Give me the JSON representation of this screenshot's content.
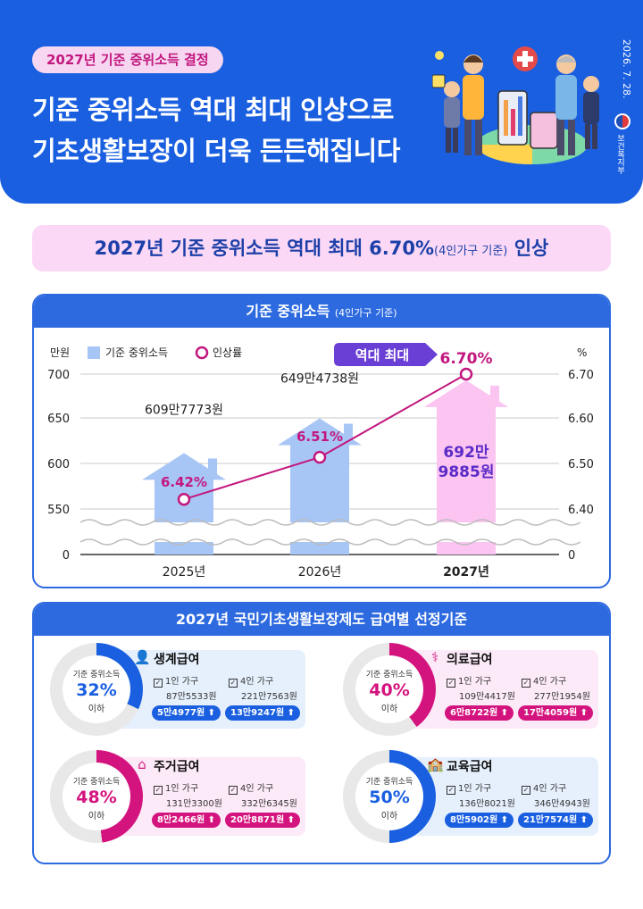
{
  "header": {
    "badge": "2027년 기준 중위소득 결정",
    "title_line1": "기준 중위소득 역대 최대 인상으로",
    "title_line2": "기초생활보장이 더욱 든든해집니다",
    "date": "2026. 7. 28.",
    "ministry": "보건복지부"
  },
  "highlight": {
    "main": "2027년 기준 중위소득 역대 최대 6.70%",
    "small": "(4인가구 기준)",
    "end": " 인상"
  },
  "chart_section": {
    "title": "기준 중위소득",
    "subtitle": "(4인가구 기준)"
  },
  "chart_data": {
    "type": "bar",
    "title": "기준 중위소득",
    "subtitle": "(4인가구 기준)",
    "categories": [
      "2025년",
      "2026년",
      "2027년"
    ],
    "series": [
      {
        "name": "기준 중위소득",
        "type": "bar",
        "axis": "left",
        "values": [
          609.7773,
          649.4738,
          692.9885
        ],
        "labels": [
          "609만7773원",
          "649만4738원",
          "692만\n9885원"
        ]
      },
      {
        "name": "인상률",
        "type": "line",
        "axis": "right",
        "values": [
          6.42,
          6.51,
          6.7
        ],
        "labels": [
          "6.42%",
          "6.51%",
          "6.70%"
        ]
      }
    ],
    "ylabel_left": "만원",
    "ylabel_right": "%",
    "yticks_left": [
      "700",
      "650",
      "600",
      "550",
      "0"
    ],
    "yticks_right": [
      "6.70",
      "6.60",
      "6.50",
      "6.40",
      "0"
    ],
    "ylim_left": [
      500,
      700
    ],
    "ylim_right": [
      6.3,
      6.7
    ],
    "axis_break": true,
    "annotation": "역대 최대",
    "legend_position": "top-left",
    "colors": {
      "bar_blue": "#a8c6f5",
      "bar_pink": "#fcc4f1",
      "line": "#c2177e",
      "bar_label_pink": "#5b2bc7"
    }
  },
  "benefits": {
    "title": "2027년 국민기초생활보장제도 급여별 선정기준",
    "ring_label": "기준 중위소득",
    "ring_sub": "이하",
    "one_person": "1인 가구",
    "four_person": "4인 가구",
    "items": [
      {
        "name": "생계급여",
        "icon": "person-icon",
        "pct": "32%",
        "pct_value": 32,
        "color": "#1a5fe0",
        "one_amount": "87만5533원",
        "four_amount": "221만7563원",
        "one_inc": "5만4977원 ⬆",
        "four_inc": "13만9247원 ⬆",
        "theme": "blue"
      },
      {
        "name": "의료급여",
        "icon": "stethoscope-icon",
        "pct": "40%",
        "pct_value": 40,
        "color": "#d4147e",
        "one_amount": "109만4417원",
        "four_amount": "277만1954원",
        "one_inc": "6만8722원 ⬆",
        "four_inc": "17만4059원 ⬆",
        "theme": "pink"
      },
      {
        "name": "주거급여",
        "icon": "house-icon",
        "pct": "48%",
        "pct_value": 48,
        "color": "#d4147e",
        "one_amount": "131만3300원",
        "four_amount": "332만6345원",
        "one_inc": "8만2466원 ⬆",
        "four_inc": "20만8871원 ⬆",
        "theme": "pink"
      },
      {
        "name": "교육급여",
        "icon": "school-icon",
        "pct": "50%",
        "pct_value": 50,
        "color": "#1a5fe0",
        "one_amount": "136만8021원",
        "four_amount": "346만4943원",
        "one_inc": "8만5902원 ⬆",
        "four_inc": "21만7574원 ⬆",
        "theme": "blue"
      }
    ]
  }
}
